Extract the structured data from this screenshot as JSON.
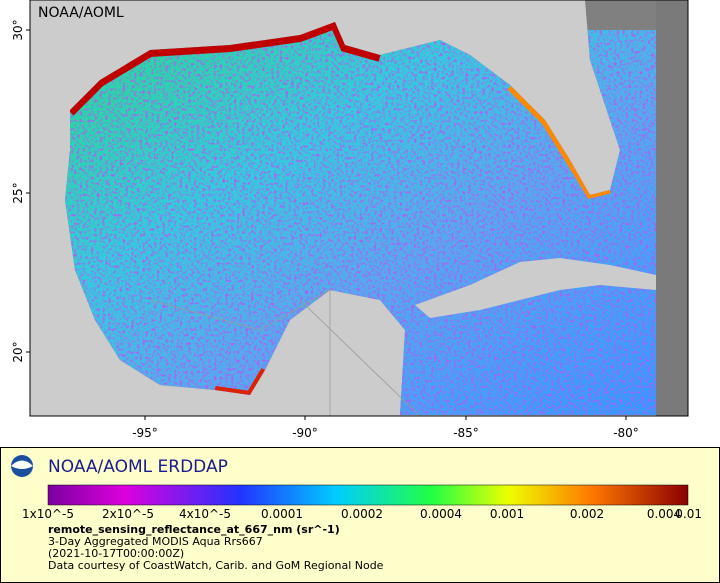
{
  "map": {
    "watermark": "NOAA/AOML",
    "lat_labels": [
      "30°",
      "25°",
      "20°"
    ],
    "lon_labels": [
      "-95°",
      "-90°",
      "-85°",
      "-80°"
    ]
  },
  "legend": {
    "title": "NOAA/AOML ERDDAP",
    "colorbar_labels": [
      "1x10^-5",
      "2x10^-5",
      "4x10^-5",
      "0.0001",
      "0.0002",
      "0.0004",
      "0.001",
      "0.002",
      "0.004",
      "0.01"
    ],
    "variable": "remote_sensing_reflectance_at_667_nm (sr^-1)",
    "description": [
      "3-Day Aggregated MODIS Aqua Rrs667",
      "(2021-10-17T00:00:00Z)",
      "Data courtesy of CoastWatch, Carib. and GoM Regional Node"
    ]
  }
}
